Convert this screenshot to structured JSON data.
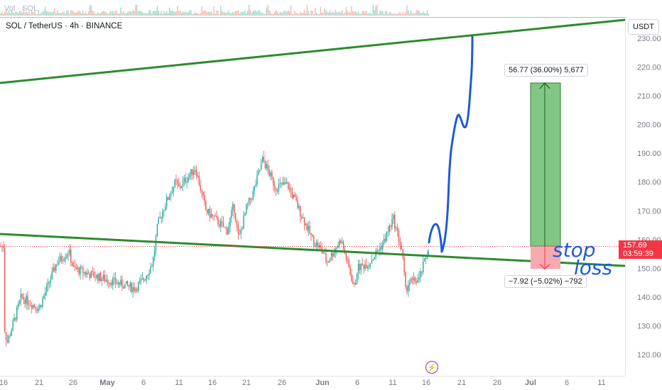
{
  "header": {
    "volume_label": "Vol · SOL",
    "symbol_label": "SOL / TetherUS · 4h · BINANCE"
  },
  "price_axis": {
    "currency": "USDT",
    "ticks": [
      "230.00",
      "220.00",
      "210.00",
      "200.00",
      "190.00",
      "180.00",
      "170.00",
      "160.00",
      "150.00",
      "140.00",
      "130.00",
      "120.00"
    ]
  },
  "time_axis": {
    "ticks": [
      "16",
      "21",
      "26",
      "May",
      "6",
      "11",
      "16",
      "21",
      "26",
      "Jun",
      "6",
      "11",
      "16",
      "21",
      "26",
      "Jul",
      "6",
      "11"
    ]
  },
  "last_price": {
    "value": "157.69",
    "countdown": "03:59:39",
    "color": "#f23645"
  },
  "long_position": {
    "target_label": "56.77 (36.00%) 5,677",
    "stop_label": "−7.92 (−5.02%) −792",
    "entry": 157.69,
    "target": 214.46,
    "stop": 149.77,
    "profit_color": "#81c784",
    "loss_color": "#f7a9b0"
  },
  "annotations": {
    "handwritten_line1": "stop",
    "handwritten_line2": "loss",
    "ink_color": "#1e5bd6"
  },
  "trendlines_color": "#2e8b2e",
  "chart_data": {
    "type": "candlestick",
    "title": "SOL / TetherUS · 4h · BINANCE",
    "xlabel": "",
    "ylabel": "",
    "ylim": [
      114.5,
      233.5
    ],
    "grid": false,
    "up_color": "#26a69a",
    "down_color": "#ef5350",
    "series": [
      {
        "date": "Apr 16",
        "close": 131
      },
      {
        "date": "Apr 21",
        "close": 136
      },
      {
        "date": "Apr 26",
        "close": 150
      },
      {
        "date": "May 1",
        "close": 146
      },
      {
        "date": "May 6",
        "close": 146
      },
      {
        "date": "May 11",
        "close": 178
      },
      {
        "date": "May 16",
        "close": 168
      },
      {
        "date": "May 21",
        "close": 171
      },
      {
        "date": "May 26",
        "close": 179
      },
      {
        "date": "Jun 1",
        "close": 156
      },
      {
        "date": "Jun 6",
        "close": 150
      },
      {
        "date": "Jun 11",
        "close": 167
      },
      {
        "date": "Jun 14",
        "close": 145
      },
      {
        "date": "Jun 16",
        "close": 157.69
      }
    ]
  }
}
